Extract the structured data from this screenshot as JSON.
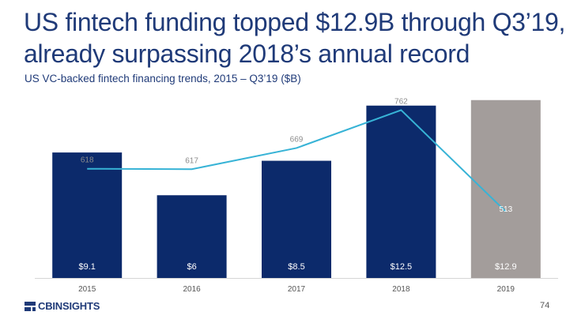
{
  "title_line1": "US fintech funding topped $12.9B through Q3’19,",
  "title_line2": "already surpassing 2018’s annual record",
  "subtitle": "US VC-backed fintech financing trends, 2015 – Q3’19 ($B)",
  "brand": "CBINSIGHTS",
  "page_number": "74",
  "colors": {
    "bar": "#0c2a6b",
    "bar_highlight": "#a39d9b",
    "line": "#37b3d6",
    "title": "#1f3a78"
  },
  "chart_data": {
    "type": "bar",
    "categories": [
      "2015",
      "2016",
      "2017",
      "2018",
      "2019"
    ],
    "series": [
      {
        "kind": "bar",
        "values": [
          9.1,
          6,
          8.5,
          12.5,
          12.9
        ],
        "labels": [
          "$9.1",
          "$6",
          "$8.5",
          "$12.5",
          "$12.9"
        ]
      },
      {
        "kind": "line",
        "values": [
          618,
          617,
          669,
          762,
          513
        ],
        "labels": [
          "618",
          "617",
          "669",
          "762",
          "513"
        ]
      }
    ],
    "highlight_index": 4,
    "bar_ylim": [
      0,
      13.0
    ],
    "line_ylim": [
      350,
      790
    ]
  }
}
